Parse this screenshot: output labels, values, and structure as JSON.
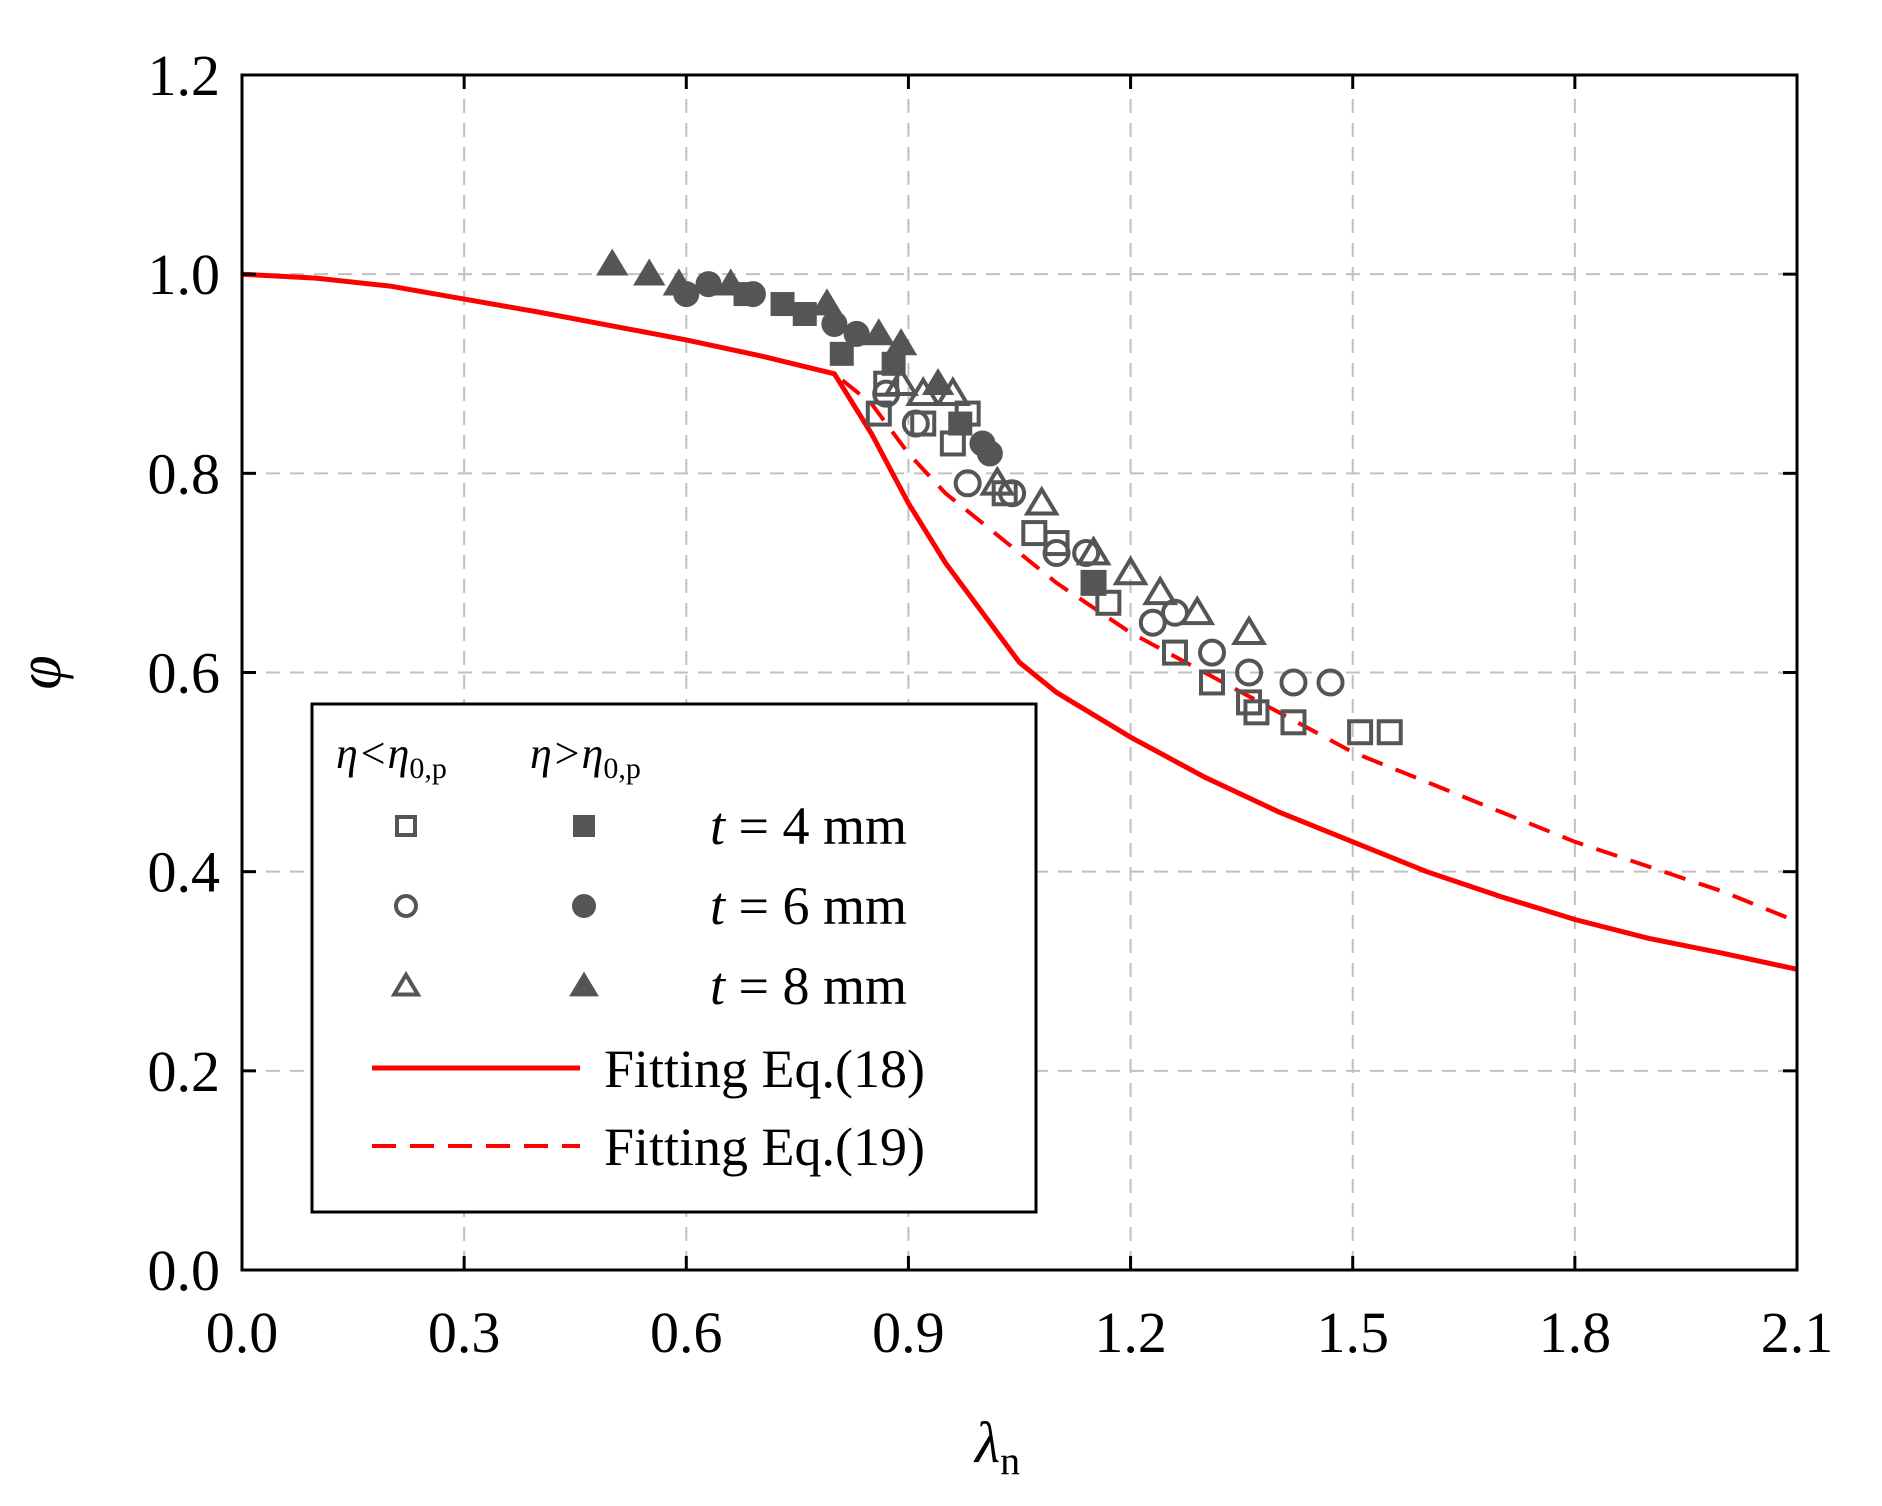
{
  "chart_data": {
    "type": "scatter",
    "xlabel": "λ",
    "xlabel_sub": "n",
    "ylabel": "φ",
    "xlim": [
      0.0,
      2.1
    ],
    "ylim": [
      0.0,
      1.2
    ],
    "xticks": [
      "0.0",
      "0.3",
      "0.6",
      "0.9",
      "1.2",
      "1.5",
      "1.8",
      "2.1"
    ],
    "yticks": [
      "0.0",
      "0.2",
      "0.4",
      "0.6",
      "0.8",
      "1.0",
      "1.2"
    ],
    "grid": true,
    "legend_position": "lower-left",
    "legend": {
      "header_left": "η<η",
      "header_left_sub": "0,p",
      "header_right": "η>η",
      "header_right_sub": "0,p",
      "entries": [
        {
          "italic": "t",
          "rest": " = 4 mm"
        },
        {
          "italic": "t",
          "rest": " = 6 mm"
        },
        {
          "italic": "t",
          "rest": " = 8 mm"
        }
      ],
      "line_entries": [
        "Fitting Eq.(18)",
        "Fitting Eq.(19)"
      ]
    },
    "colors": {
      "markers": "#555555",
      "fit": "#ff0000",
      "grid": "#c0c0c0"
    },
    "series": [
      {
        "name": "t = 4 mm, η<η0,p",
        "marker": "square-open",
        "points": [
          [
            0.86,
            0.86
          ],
          [
            0.87,
            0.89
          ],
          [
            0.92,
            0.85
          ],
          [
            0.96,
            0.83
          ],
          [
            0.98,
            0.86
          ],
          [
            1.03,
            0.78
          ],
          [
            1.07,
            0.74
          ],
          [
            1.1,
            0.73
          ],
          [
            1.15,
            0.69
          ],
          [
            1.17,
            0.67
          ],
          [
            1.26,
            0.62
          ],
          [
            1.31,
            0.59
          ],
          [
            1.36,
            0.57
          ],
          [
            1.37,
            0.56
          ],
          [
            1.42,
            0.55
          ],
          [
            1.51,
            0.54
          ],
          [
            1.55,
            0.54
          ]
        ]
      },
      {
        "name": "t = 4 mm, η>η0,p",
        "marker": "square-filled",
        "points": [
          [
            0.68,
            0.98
          ],
          [
            0.73,
            0.97
          ],
          [
            0.76,
            0.96
          ],
          [
            0.81,
            0.92
          ],
          [
            0.88,
            0.91
          ],
          [
            0.97,
            0.85
          ],
          [
            1.15,
            0.69
          ]
        ]
      },
      {
        "name": "t = 6 mm, η<η0,p",
        "marker": "circle-open",
        "points": [
          [
            0.87,
            0.88
          ],
          [
            0.91,
            0.85
          ],
          [
            0.98,
            0.79
          ],
          [
            1.04,
            0.78
          ],
          [
            1.1,
            0.72
          ],
          [
            1.14,
            0.72
          ],
          [
            1.23,
            0.65
          ],
          [
            1.26,
            0.66
          ],
          [
            1.31,
            0.62
          ],
          [
            1.36,
            0.6
          ],
          [
            1.42,
            0.59
          ],
          [
            1.47,
            0.59
          ]
        ]
      },
      {
        "name": "t = 6 mm, η>η0,p",
        "marker": "circle-filled",
        "points": [
          [
            0.6,
            0.98
          ],
          [
            0.63,
            0.99
          ],
          [
            0.69,
            0.98
          ],
          [
            0.8,
            0.95
          ],
          [
            0.83,
            0.94
          ],
          [
            1.0,
            0.83
          ],
          [
            1.01,
            0.82
          ]
        ]
      },
      {
        "name": "t = 8 mm, η<η0,p",
        "marker": "triangle-open",
        "points": [
          [
            0.89,
            0.89
          ],
          [
            0.92,
            0.88
          ],
          [
            0.96,
            0.88
          ],
          [
            1.02,
            0.79
          ],
          [
            1.08,
            0.77
          ],
          [
            1.15,
            0.72
          ],
          [
            1.2,
            0.7
          ],
          [
            1.24,
            0.68
          ],
          [
            1.29,
            0.66
          ],
          [
            1.36,
            0.64
          ]
        ]
      },
      {
        "name": "t = 8 mm, η>η0,p",
        "marker": "triangle-filled",
        "points": [
          [
            0.5,
            1.01
          ],
          [
            0.55,
            1.0
          ],
          [
            0.59,
            0.99
          ],
          [
            0.66,
            0.99
          ],
          [
            0.79,
            0.97
          ],
          [
            0.86,
            0.94
          ],
          [
            0.89,
            0.93
          ],
          [
            0.94,
            0.89
          ]
        ]
      }
    ],
    "fits": [
      {
        "name": "Fitting Eq.(18)",
        "style": "solid",
        "points": [
          [
            0.0,
            1.0
          ],
          [
            0.1,
            0.996
          ],
          [
            0.2,
            0.988
          ],
          [
            0.3,
            0.975
          ],
          [
            0.4,
            0.962
          ],
          [
            0.5,
            0.948
          ],
          [
            0.6,
            0.934
          ],
          [
            0.7,
            0.918
          ],
          [
            0.8,
            0.9
          ],
          [
            0.85,
            0.84
          ],
          [
            0.9,
            0.77
          ],
          [
            0.95,
            0.71
          ],
          [
            1.0,
            0.66
          ],
          [
            1.05,
            0.61
          ],
          [
            1.1,
            0.58
          ],
          [
            1.2,
            0.535
          ],
          [
            1.3,
            0.495
          ],
          [
            1.4,
            0.46
          ],
          [
            1.5,
            0.43
          ],
          [
            1.6,
            0.4
          ],
          [
            1.7,
            0.375
          ],
          [
            1.8,
            0.352
          ],
          [
            1.9,
            0.333
          ],
          [
            2.0,
            0.318
          ],
          [
            2.1,
            0.302
          ]
        ]
      },
      {
        "name": "Fitting Eq.(19)",
        "style": "dashed",
        "points": [
          [
            0.0,
            1.0
          ],
          [
            0.1,
            0.996
          ],
          [
            0.2,
            0.988
          ],
          [
            0.3,
            0.975
          ],
          [
            0.4,
            0.962
          ],
          [
            0.5,
            0.948
          ],
          [
            0.6,
            0.934
          ],
          [
            0.7,
            0.918
          ],
          [
            0.8,
            0.9
          ],
          [
            0.85,
            0.87
          ],
          [
            0.9,
            0.82
          ],
          [
            0.95,
            0.78
          ],
          [
            1.0,
            0.75
          ],
          [
            1.05,
            0.72
          ],
          [
            1.1,
            0.69
          ],
          [
            1.2,
            0.64
          ],
          [
            1.3,
            0.6
          ],
          [
            1.4,
            0.56
          ],
          [
            1.5,
            0.52
          ],
          [
            1.6,
            0.49
          ],
          [
            1.7,
            0.46
          ],
          [
            1.8,
            0.43
          ],
          [
            1.9,
            0.405
          ],
          [
            2.0,
            0.38
          ],
          [
            2.1,
            0.35
          ]
        ]
      }
    ]
  }
}
